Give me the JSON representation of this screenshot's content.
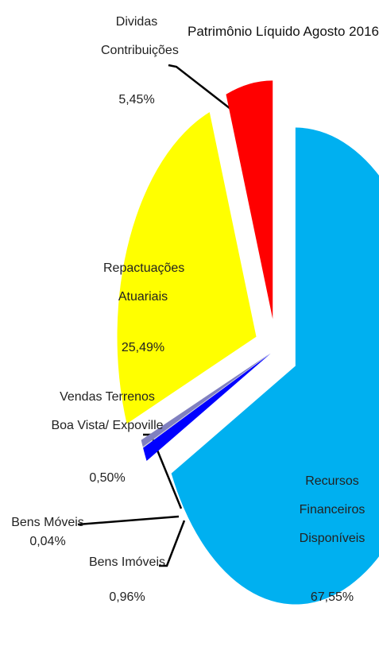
{
  "chart_data": {
    "type": "pie",
    "title": "Patrimônio Líquido Agosto 2016",
    "categories": [
      "Recursos Financeiros Disponíveis",
      "Bens Imóveis",
      "Bens Móveis",
      "Vendas Terrenos Boa Vista/ Expoville",
      "Repactuações Atuariais",
      "Dividas Contribuições"
    ],
    "values": [
      67.55,
      0.96,
      0.04,
      0.5,
      25.49,
      5.45
    ],
    "value_labels": [
      "67,55%",
      "0,96%",
      "0,04%",
      "0,50%",
      "25,49%",
      "5,45%"
    ],
    "colors": [
      "#00b0f0",
      "#0000ff",
      "#c0c0c0",
      "#8080c0",
      "#ffff00",
      "#ff0000"
    ]
  }
}
